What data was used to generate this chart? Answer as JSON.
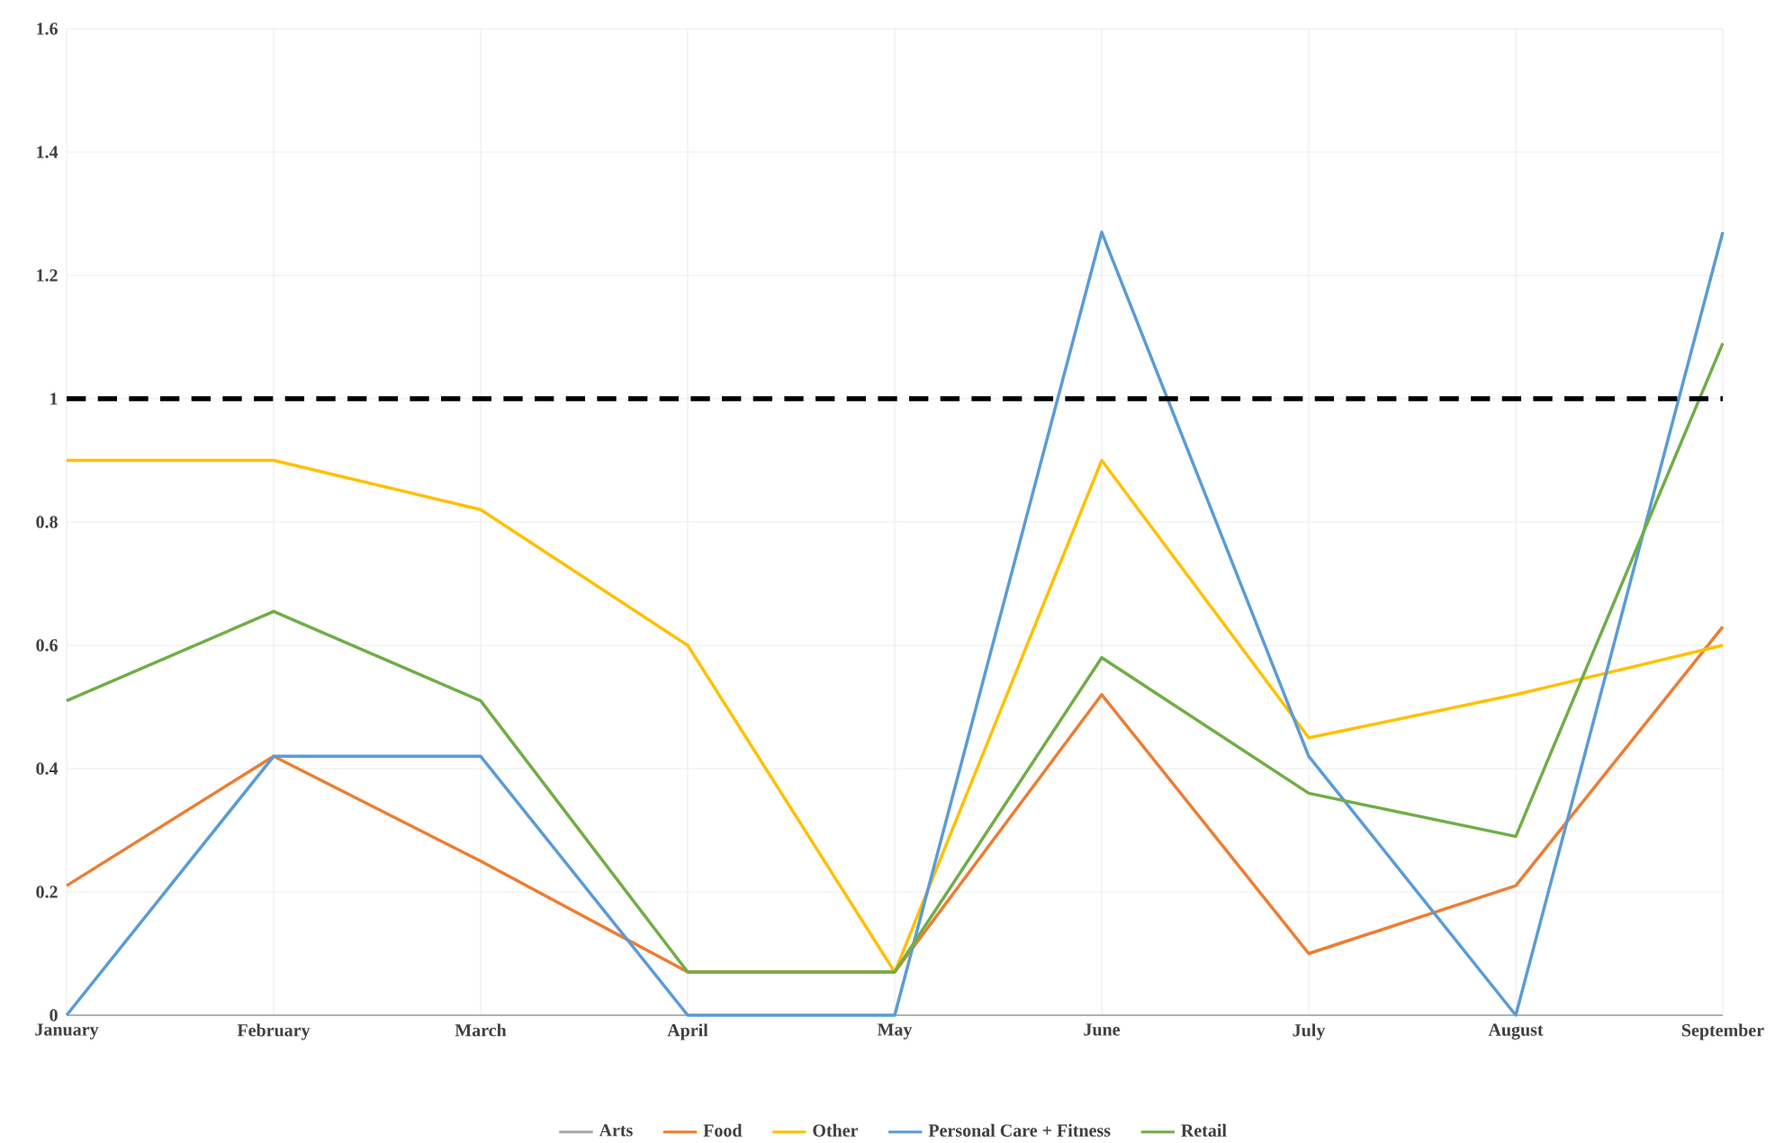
{
  "chart_data": {
    "type": "line",
    "categories": [
      "January",
      "February",
      "March",
      "April",
      "May",
      "June",
      "July",
      "August",
      "September"
    ],
    "series": [
      {
        "name": "Arts",
        "color": "#a5a5a5",
        "values": [
          null,
          null,
          null,
          null,
          null,
          null,
          null,
          null,
          null
        ]
      },
      {
        "name": "Food",
        "color": "#ed7d31",
        "values": [
          0.21,
          0.42,
          0.25,
          0.07,
          0.07,
          0.52,
          0.1,
          0.21,
          0.63
        ]
      },
      {
        "name": "Other",
        "color": "#ffc000",
        "values": [
          0.9,
          0.9,
          0.82,
          0.6,
          0.07,
          0.9,
          0.45,
          0.52,
          0.6
        ]
      },
      {
        "name": "Personal Care + Fitness",
        "color": "#5b9bd5",
        "values": [
          0,
          0.42,
          0.42,
          0,
          0,
          1.27,
          0.42,
          0,
          1.27
        ]
      },
      {
        "name": "Retail",
        "color": "#70ad47",
        "values": [
          0.51,
          0.655,
          0.51,
          0.07,
          0.07,
          0.58,
          0.36,
          0.29,
          1.09
        ]
      }
    ],
    "ylim": [
      0,
      1.6
    ],
    "yticks": [
      0,
      0.2,
      0.4,
      0.6,
      0.8,
      1,
      1.2,
      1.4,
      1.6
    ],
    "ref_lines": [
      {
        "axis": "y",
        "value": 1,
        "color": "#000000",
        "line_style": "dashed"
      }
    ],
    "grid": true,
    "legend": "bottom",
    "marker": "none",
    "line_style": "solid"
  }
}
